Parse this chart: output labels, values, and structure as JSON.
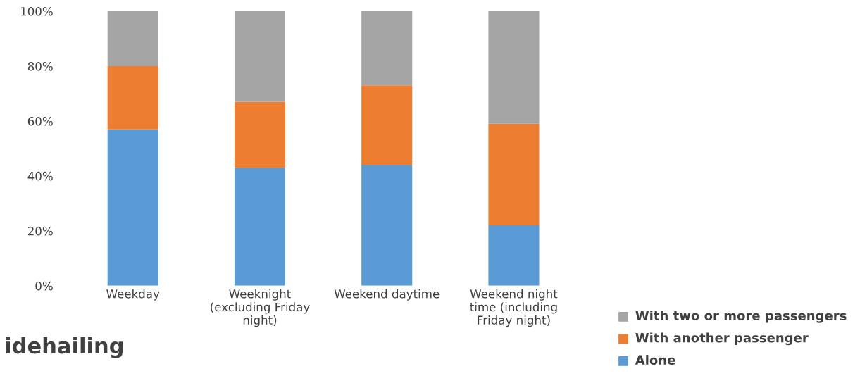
{
  "chart_data": {
    "type": "bar",
    "stacked": true,
    "categories": [
      "Weekday",
      "Weeknight\n(excluding Friday\nnight)",
      "Weekend daytime",
      "Weekend night\ntime (including\nFriday night)"
    ],
    "series": [
      {
        "name": "Alone",
        "color": "#5b9bd5",
        "values": [
          57,
          43,
          44,
          22
        ]
      },
      {
        "name": "With another passenger",
        "color": "#ed7d31",
        "values": [
          23,
          24,
          29,
          37
        ]
      },
      {
        "name": "With two or more passengers",
        "color": "#a5a5a5",
        "values": [
          20,
          33,
          27,
          41
        ]
      }
    ],
    "ylim": [
      0,
      100
    ],
    "yticks": [
      {
        "value": 0,
        "label": "0%"
      },
      {
        "value": 20,
        "label": "20%"
      },
      {
        "value": 40,
        "label": "40%"
      },
      {
        "value": 60,
        "label": "60%"
      },
      {
        "value": 80,
        "label": "80%"
      },
      {
        "value": 100,
        "label": "100%"
      }
    ],
    "grid": false,
    "legend": "bottom right",
    "marker": "square",
    "annotations": [
      "idehailing"
    ]
  }
}
